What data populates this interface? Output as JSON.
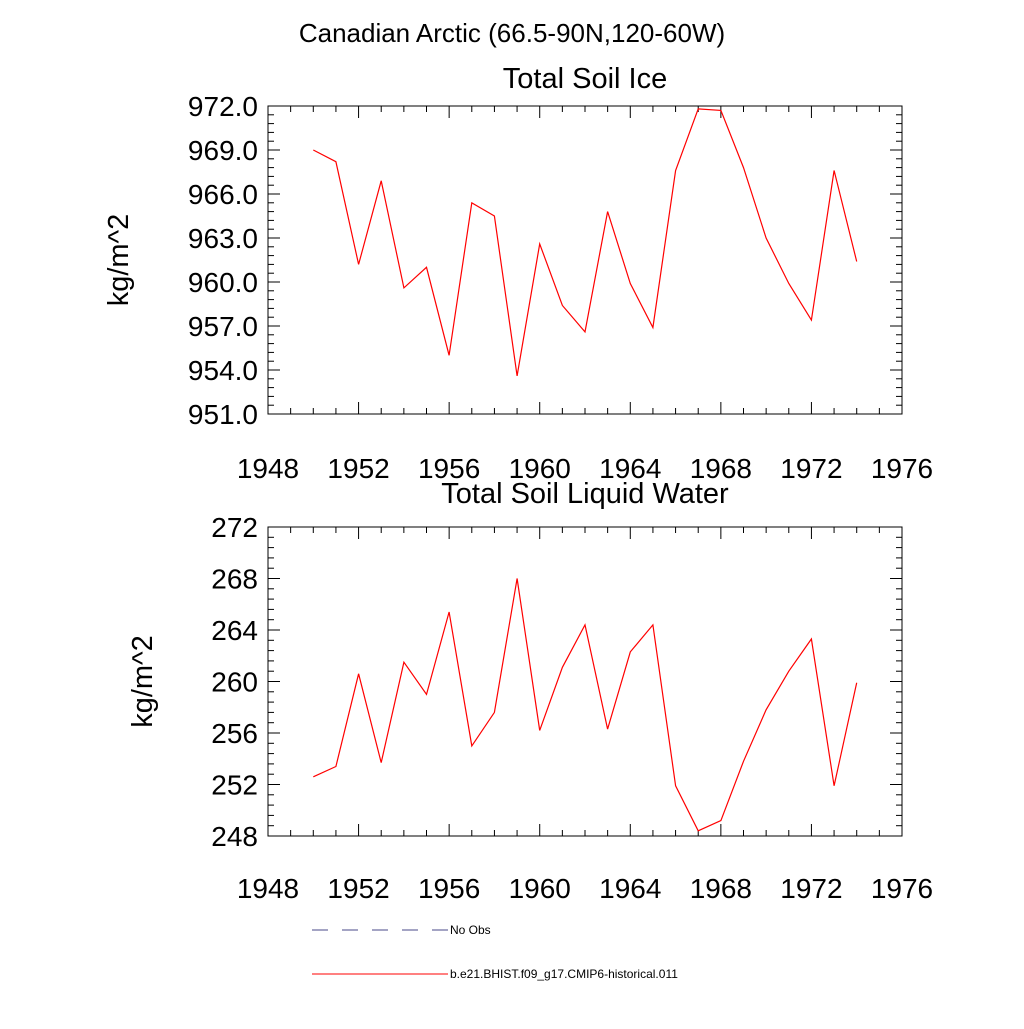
{
  "figure": {
    "title": "Canadian Arctic (66.5-90N,120-60W)"
  },
  "legend": {
    "entries": [
      {
        "label": "No Obs",
        "style": "dashed",
        "color": "#4a4a8a"
      },
      {
        "label": "b.e21.BHIST.f09_g17.CMIP6-historical.011",
        "style": "solid",
        "color": "#ff0000"
      }
    ]
  },
  "chart_data": [
    {
      "type": "line",
      "title": "Total Soil Ice",
      "xlabel": "",
      "ylabel": "kg/m^2",
      "xlim": [
        1948,
        1976
      ],
      "ylim": [
        951,
        972
      ],
      "x_ticks": [
        1948,
        1952,
        1956,
        1960,
        1964,
        1968,
        1972,
        1976
      ],
      "y_ticks": [
        951.0,
        954.0,
        957.0,
        960.0,
        963.0,
        966.0,
        969.0,
        972.0
      ],
      "y_tick_labels": [
        "951.0",
        "954.0",
        "957.0",
        "960.0",
        "963.0",
        "966.0",
        "969.0",
        "972.0"
      ],
      "grid": false,
      "series": [
        {
          "name": "b.e21.BHIST.f09_g17.CMIP6-historical.011",
          "color": "#ff0000",
          "x": [
            1950,
            1951,
            1952,
            1953,
            1954,
            1955,
            1956,
            1957,
            1958,
            1959,
            1960,
            1961,
            1962,
            1963,
            1964,
            1965,
            1966,
            1967,
            1968,
            1969,
            1970,
            1971,
            1972,
            1973,
            1974
          ],
          "values": [
            969.0,
            968.2,
            961.2,
            966.9,
            959.6,
            961.0,
            955.0,
            965.4,
            964.5,
            953.6,
            962.6,
            958.4,
            956.6,
            964.8,
            959.9,
            956.9,
            967.6,
            971.8,
            971.7,
            967.8,
            963.0,
            959.9,
            957.4,
            967.6,
            961.4
          ]
        }
      ]
    },
    {
      "type": "line",
      "title": "Total Soil Liquid Water",
      "xlabel": "",
      "ylabel": "kg/m^2",
      "xlim": [
        1948,
        1976
      ],
      "ylim": [
        248,
        272
      ],
      "x_ticks": [
        1948,
        1952,
        1956,
        1960,
        1964,
        1968,
        1972,
        1976
      ],
      "y_ticks": [
        248,
        252,
        256,
        260,
        264,
        268,
        272
      ],
      "y_tick_labels": [
        "248",
        "252",
        "256",
        "260",
        "264",
        "268",
        "272"
      ],
      "grid": false,
      "series": [
        {
          "name": "b.e21.BHIST.f09_g17.CMIP6-historical.011",
          "color": "#ff0000",
          "x": [
            1950,
            1951,
            1952,
            1953,
            1954,
            1955,
            1956,
            1957,
            1958,
            1959,
            1960,
            1961,
            1962,
            1963,
            1964,
            1965,
            1966,
            1967,
            1968,
            1969,
            1970,
            1971,
            1972,
            1973,
            1974
          ],
          "values": [
            252.6,
            253.4,
            260.6,
            253.7,
            261.5,
            259.0,
            265.4,
            255.0,
            257.6,
            268.0,
            256.2,
            261.1,
            264.4,
            256.3,
            262.3,
            264.4,
            251.9,
            248.4,
            249.2,
            253.8,
            257.8,
            260.8,
            263.3,
            251.9,
            259.9
          ]
        }
      ]
    }
  ]
}
